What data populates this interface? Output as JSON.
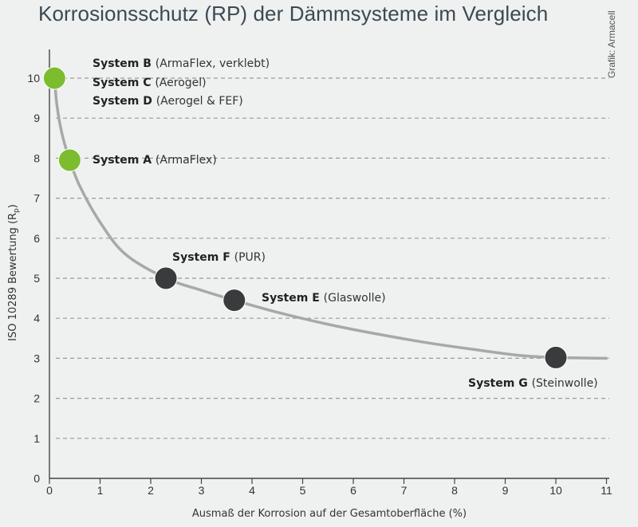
{
  "title": "Korrosionsschutz (RP) der Dämmsysteme im Vergleich",
  "credit": "Grafik: Armacell",
  "colors": {
    "background": "#eff0f0",
    "title": "#3b4a52",
    "green_marker": "#7cbd2f",
    "dark_marker": "#3a3b3d",
    "curve": "#a8a8a8",
    "grid": "#9a9a9a"
  },
  "chart_data": {
    "type": "scatter",
    "title": "Korrosionsschutz (RP) der Dämmsysteme im Vergleich",
    "xlabel": "Ausmaß der Korrosion auf der Gesamtoberfläche (%)",
    "ylabel": "ISO 10289 Bewertung (R",
    "ylabel_subscript": "p",
    "ylabel_suffix": ")",
    "xlim": [
      0,
      11
    ],
    "ylim": [
      0,
      10
    ],
    "xticks": [
      0,
      1,
      2,
      3,
      4,
      5,
      6,
      7,
      8,
      9,
      10,
      11
    ],
    "yticks": [
      0,
      1,
      2,
      3,
      4,
      5,
      6,
      7,
      8,
      9,
      10
    ],
    "grid": "horizontal dashed",
    "curve": {
      "x": [
        0.1,
        0.15,
        0.25,
        0.4,
        0.6,
        1.0,
        1.5,
        2.3,
        3.0,
        3.65,
        4.5,
        5.5,
        6.5,
        7.5,
        8.5,
        9.3,
        10.0,
        11.0
      ],
      "y": [
        10.0,
        9.3,
        8.6,
        7.95,
        7.3,
        6.4,
        5.6,
        5.0,
        4.7,
        4.45,
        4.15,
        3.85,
        3.6,
        3.38,
        3.2,
        3.07,
        3.02,
        3.0
      ]
    },
    "points": [
      {
        "x": 0.1,
        "y": 10,
        "color": "green",
        "name": "System B",
        "desc": "(ArmaFlex, verklebt)"
      },
      {
        "x": 0.4,
        "y": 7.95,
        "color": "green",
        "name": "System A",
        "desc": "(ArmaFlex)"
      },
      {
        "x": 2.3,
        "y": 5.0,
        "color": "dark",
        "name": "System F",
        "desc": "(PUR)"
      },
      {
        "x": 3.65,
        "y": 4.45,
        "color": "dark",
        "name": "System E",
        "desc": "(Glaswolle)"
      },
      {
        "x": 10.0,
        "y": 3.02,
        "color": "dark",
        "name": "System G",
        "desc": "(Steinwolle)"
      }
    ],
    "extra_labels": [
      {
        "name": "System C",
        "desc": "(Aerogel)"
      },
      {
        "name": "System D",
        "desc": "(Aerogel & FEF)"
      }
    ]
  }
}
